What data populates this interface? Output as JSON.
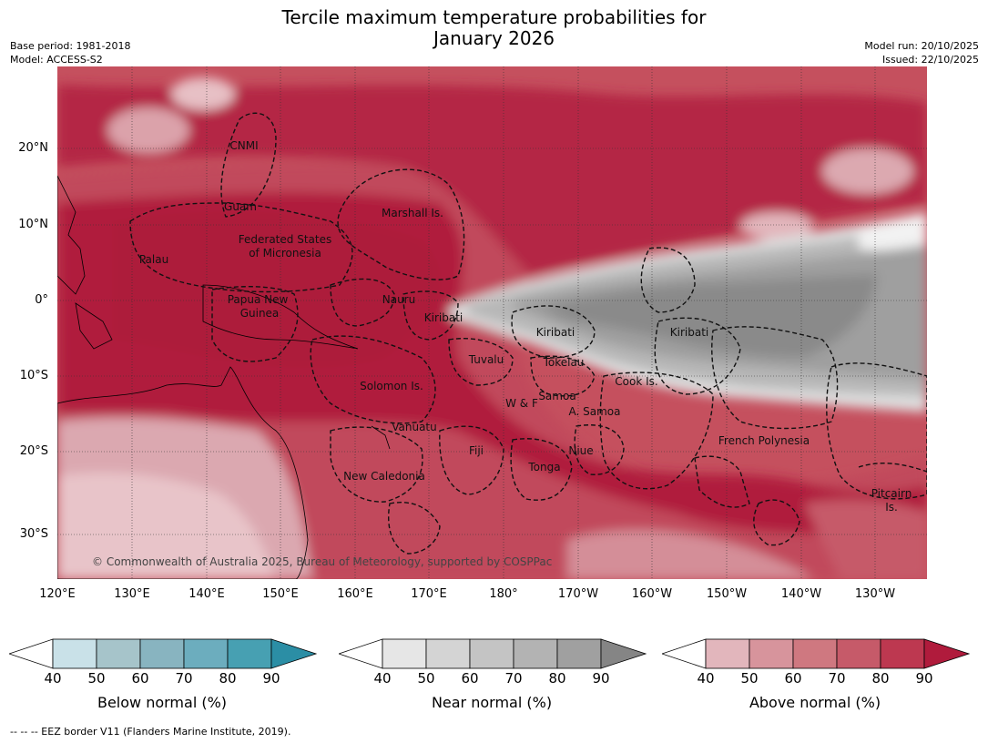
{
  "title": {
    "line1": "Tercile maximum temperature probabilities for",
    "line2": "January 2026"
  },
  "meta": {
    "base_period": "Base period: 1981-2018",
    "model": "Model: ACCESS-S2",
    "model_run": "Model run: 20/10/2025",
    "issued": "Issued: 22/10/2025"
  },
  "map": {
    "lat_labels": [
      "20°N",
      "10°N",
      "0°",
      "10°S",
      "20°S",
      "30°S"
    ],
    "lon_labels": [
      "120°E",
      "130°E",
      "140°E",
      "150°E",
      "160°E",
      "170°E",
      "180°",
      "170°W",
      "160°W",
      "150°W",
      "140°W",
      "130°W"
    ],
    "regions": [
      "CNMI",
      "Guam",
      "Marshall Is.",
      "Federated States",
      "of Micronesia",
      "Palau",
      "Papua New",
      "Guinea",
      "Nauru",
      "Kiribati",
      "Kiribati",
      "Kiribati",
      "Tuvalu",
      "Tokelau",
      "Solomon Is.",
      "Cook Is.",
      "Samoa",
      "W & F",
      "A. Samoa",
      "Vanuatu",
      "Fiji",
      "Niue",
      "Tonga",
      "French Polynesia",
      "New Caledonia",
      "Pitcairn",
      "Is."
    ],
    "copyright": "© Commonwealth of Australia 2025, Bureau of Meteorology, supported by COSPPac"
  },
  "colorbars": [
    {
      "label": "Below normal (%)",
      "ticks": [
        "40",
        "50",
        "60",
        "70",
        "80",
        "90"
      ],
      "colors": [
        "#ffffff",
        "#c9e1e8",
        "#a6c4ca",
        "#88b4c0",
        "#6cadbe",
        "#47a0b2",
        "#2b8ea5"
      ]
    },
    {
      "label": "Near normal (%)",
      "ticks": [
        "40",
        "50",
        "60",
        "70",
        "80",
        "90"
      ],
      "colors": [
        "#ffffff",
        "#e6e6e6",
        "#d4d4d4",
        "#c4c4c4",
        "#b3b3b3",
        "#a0a0a0",
        "#858585"
      ]
    },
    {
      "label": "Above normal (%)",
      "ticks": [
        "40",
        "50",
        "60",
        "70",
        "80",
        "90"
      ],
      "colors": [
        "#ffffff",
        "#e2b6bc",
        "#d7949c",
        "#cf7880",
        "#c65a69",
        "#bd3850",
        "#b01b3c"
      ]
    }
  ],
  "footnote": "--  --  -- EEZ border V11 (Flanders Marine Institute, 2019)."
}
